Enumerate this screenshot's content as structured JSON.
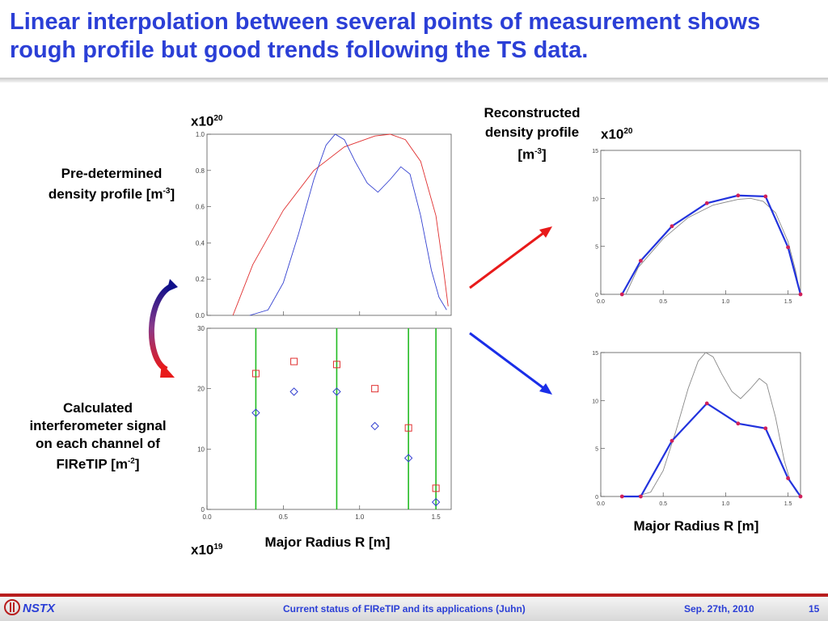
{
  "slide": {
    "title": "Linear interpolation between several points of measurement shows rough profile but good trends following the TS data.",
    "footer_center": "Current status of FIReTIP and its applications (Juhn)",
    "footer_date": "Sep. 27th, 2010",
    "page_number": "15",
    "logo_text": "NSTX"
  },
  "labels": {
    "predetermined_line1": "Pre-determined",
    "predetermined_line2": "density profile [m",
    "predetermined_sup": "-3",
    "predetermined_end": "]",
    "calculated_line1": "Calculated",
    "calculated_line2": "interferometer signal",
    "calculated_line3": "on each channel of",
    "calculated_line4": "FIReTIP [m",
    "calculated_sup": "-2",
    "calculated_end": "]",
    "reconstructed_line1": "Reconstructed",
    "reconstructed_line2": "density profile",
    "reconstructed_line3": "[m",
    "reconstructed_sup": "-3",
    "reconstructed_end": "]",
    "scale_base": "x10",
    "scale_left_top_exp": "20",
    "scale_right_exp": "20",
    "scale_left_bottom_exp": "19",
    "xlabel_left": "Major Radius R [m]",
    "xlabel_right": "Major Radius R [m]"
  },
  "chart_data": [
    {
      "id": "predetermined",
      "type": "line",
      "xlim": [
        0.0,
        1.6
      ],
      "ylim": [
        0.0,
        1.0
      ],
      "xticks": [
        "0.0",
        "0.5",
        "1.0",
        "1.5"
      ],
      "yticks": [
        "0.0",
        "0.2",
        "0.4",
        "0.6",
        "0.8",
        "1.0"
      ],
      "series": [
        {
          "color": "#e03030",
          "x": [
            0.17,
            0.3,
            0.5,
            0.7,
            0.9,
            1.1,
            1.2,
            1.3,
            1.4,
            1.5,
            1.55,
            1.58
          ],
          "y": [
            0.0,
            0.28,
            0.58,
            0.8,
            0.93,
            0.99,
            1.0,
            0.97,
            0.85,
            0.55,
            0.25,
            0.05
          ]
        },
        {
          "color": "#3340d0",
          "x": [
            0.28,
            0.4,
            0.5,
            0.6,
            0.7,
            0.78,
            0.84,
            0.9,
            0.97,
            1.05,
            1.12,
            1.2,
            1.27,
            1.33,
            1.4,
            1.47,
            1.52,
            1.57
          ],
          "y": [
            0.0,
            0.03,
            0.18,
            0.45,
            0.75,
            0.94,
            1.0,
            0.97,
            0.85,
            0.73,
            0.68,
            0.75,
            0.82,
            0.78,
            0.55,
            0.25,
            0.1,
            0.03
          ]
        }
      ]
    },
    {
      "id": "interferometer",
      "type": "scatter",
      "xlim": [
        0.0,
        1.6
      ],
      "ylim": [
        0,
        30
      ],
      "xticks": [
        "0.0",
        "0.5",
        "1.0",
        "1.5"
      ],
      "yticks": [
        "0",
        "10",
        "20",
        "30"
      ],
      "channels_x": [
        0.32,
        0.85,
        1.32,
        1.5
      ],
      "series": [
        {
          "marker": "square",
          "color": "#e03030",
          "x": [
            0.32,
            0.57,
            0.85,
            1.1,
            1.32,
            1.5
          ],
          "y": [
            22.5,
            24.5,
            24.0,
            20.0,
            13.5,
            3.5
          ]
        },
        {
          "marker": "diamond",
          "color": "#3340d0",
          "x": [
            0.32,
            0.57,
            0.85,
            1.1,
            1.32,
            1.5
          ],
          "y": [
            16.0,
            19.5,
            19.5,
            13.8,
            8.5,
            1.2
          ]
        }
      ]
    },
    {
      "id": "reconstructed_top",
      "type": "line",
      "xlim": [
        0.0,
        1.6
      ],
      "ylim": [
        0,
        15
      ],
      "xticks": [
        "0.0",
        "0.5",
        "1.0",
        "1.5"
      ],
      "yticks": [
        "0",
        "5",
        "10",
        "15"
      ],
      "series": [
        {
          "color": "#888888",
          "x": [
            0.2,
            0.3,
            0.5,
            0.7,
            0.9,
            1.1,
            1.2,
            1.3,
            1.4,
            1.5,
            1.56,
            1.59
          ],
          "y": [
            0.0,
            2.8,
            5.8,
            8.0,
            9.3,
            9.9,
            10.0,
            9.7,
            8.5,
            5.5,
            2.5,
            0.5
          ]
        },
        {
          "color": "#2233dd",
          "x": [
            0.17,
            0.32,
            0.57,
            0.85,
            1.1,
            1.32,
            1.5,
            1.6
          ],
          "y": [
            0.0,
            3.5,
            7.1,
            9.5,
            10.3,
            10.2,
            4.9,
            0.0
          ]
        }
      ]
    },
    {
      "id": "reconstructed_bottom",
      "type": "line",
      "xlim": [
        0.0,
        1.6
      ],
      "ylim": [
        0,
        15
      ],
      "xticks": [
        "0.0",
        "0.5",
        "1.0",
        "1.5"
      ],
      "yticks": [
        "0",
        "5",
        "10",
        "15"
      ],
      "series": [
        {
          "color": "#888888",
          "x": [
            0.28,
            0.4,
            0.5,
            0.6,
            0.7,
            0.78,
            0.84,
            0.9,
            0.97,
            1.05,
            1.12,
            1.2,
            1.27,
            1.33,
            1.4,
            1.47,
            1.52,
            1.57
          ],
          "y": [
            0.0,
            0.45,
            2.7,
            6.75,
            11.25,
            14.1,
            15.0,
            14.55,
            12.75,
            10.95,
            10.2,
            11.25,
            12.3,
            11.7,
            8.25,
            3.75,
            1.5,
            0.45
          ]
        },
        {
          "color": "#2233dd",
          "x": [
            0.17,
            0.32,
            0.57,
            0.85,
            1.1,
            1.32,
            1.5,
            1.6
          ],
          "y": [
            0.0,
            0.0,
            5.8,
            9.7,
            7.6,
            7.1,
            1.9,
            0.0
          ]
        }
      ]
    }
  ]
}
